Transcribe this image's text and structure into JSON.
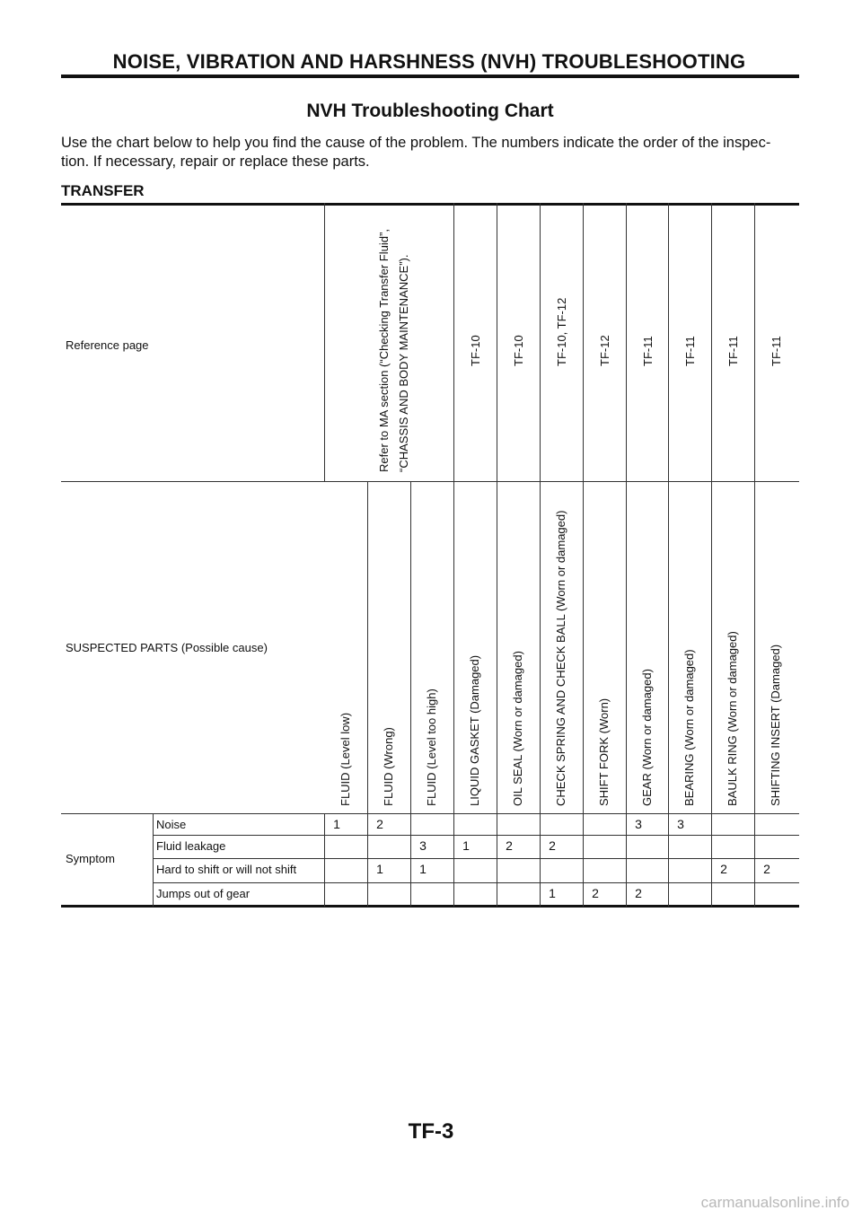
{
  "header": {
    "title": "NOISE, VIBRATION AND HARSHNESS (NVH) TROUBLESHOOTING"
  },
  "chart_title": "NVH Troubleshooting Chart",
  "intro": "Use the chart below to help you find the cause of the problem. The numbers indicate the order of the inspec- tion. If necessary, repair or replace these parts.",
  "section": "TRANSFER",
  "table": {
    "reference_label": "Reference page",
    "ma_reference_lines": [
      "Refer to MA section (“Checking Transfer Fluid”,",
      "“CHASSIS AND BODY MAINTENANCE”)."
    ],
    "reference_pages": [
      "TF-10",
      "TF-10",
      "TF-10, TF-12",
      "TF-12",
      "TF-11",
      "TF-11",
      "TF-11",
      "TF-11"
    ],
    "suspected_label": "SUSPECTED PARTS (Possible cause)",
    "parts": [
      "FLUID (Level low)",
      "FLUID (Wrong)",
      "FLUID (Level too high)",
      "LIQUID GASKET (Damaged)",
      "OIL SEAL (Worn or damaged)",
      "CHECK SPRING AND CHECK BALL (Worn or damaged)",
      "SHIFT FORK (Worn)",
      "GEAR (Worn or damaged)",
      "BEARING (Worn or damaged)",
      "BAULK RING (Worn or damaged)",
      "SHIFTING INSERT (Damaged)"
    ],
    "symptom_label": "Symptom",
    "symptoms": [
      {
        "name": "Noise",
        "values": [
          "1",
          "2",
          "",
          "",
          "",
          "",
          "",
          "3",
          "3",
          "",
          ""
        ]
      },
      {
        "name": "Fluid leakage",
        "values": [
          "",
          "",
          "3",
          "1",
          "2",
          "2",
          "",
          "",
          "",
          "",
          ""
        ]
      },
      {
        "name": "Hard to shift or will not shift",
        "values": [
          "",
          "1",
          "1",
          "",
          "",
          "",
          "",
          "",
          "",
          "2",
          "2"
        ]
      },
      {
        "name": "Jumps out of gear",
        "values": [
          "",
          "",
          "",
          "",
          "",
          "1",
          "2",
          "2",
          "",
          "",
          ""
        ]
      }
    ]
  },
  "footer": {
    "page_code": "TF-3"
  },
  "watermark": "carmanualsonline.info"
}
